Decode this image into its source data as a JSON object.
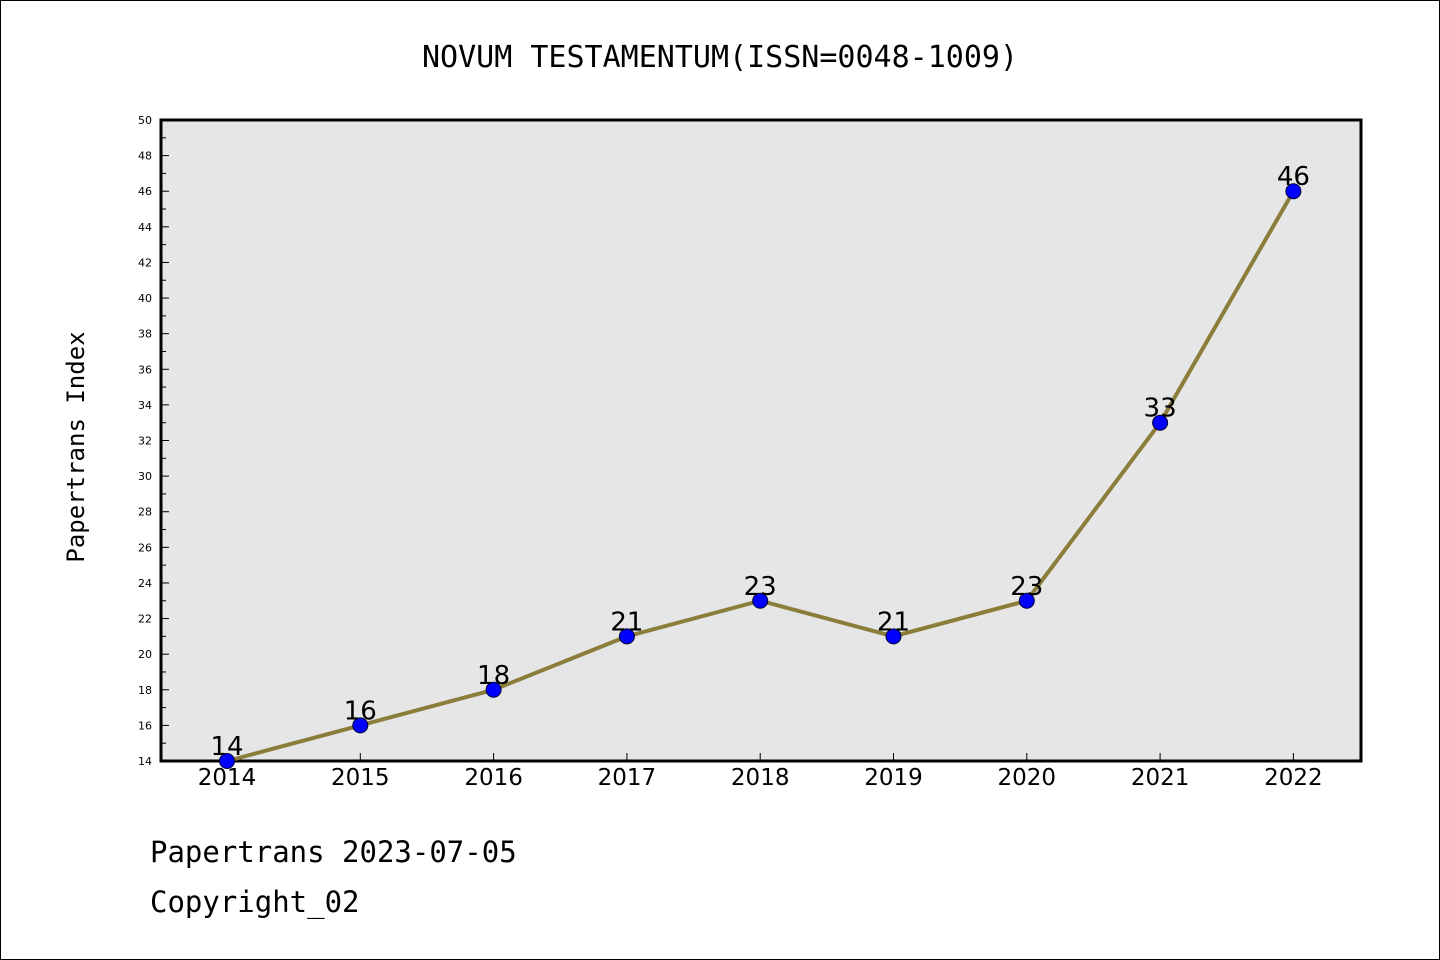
{
  "chart_data": {
    "type": "line",
    "title": "NOVUM TESTAMENTUM(ISSN=0048-1009)",
    "xlabel": "",
    "ylabel": "Papertrans Index",
    "categories": [
      "2014",
      "2015",
      "2016",
      "2017",
      "2018",
      "2019",
      "2020",
      "2021",
      "2022"
    ],
    "series": [
      {
        "values": [
          14,
          16,
          18,
          21,
          23,
          21,
          23,
          33,
          46
        ]
      }
    ],
    "ylim": [
      14,
      50
    ],
    "y_major_step": 2,
    "y_minor_step": 1,
    "grid": false,
    "data_labels": true,
    "colors": {
      "plot_background": "#e6e6e6",
      "line": "#8b7d3a",
      "marker_fill": "#0000ff",
      "marker_stroke": "#000033",
      "axis": "#000000"
    }
  },
  "footer": {
    "date_text": "Papertrans 2023-07-05",
    "copyright_text": "Copyright_02"
  }
}
